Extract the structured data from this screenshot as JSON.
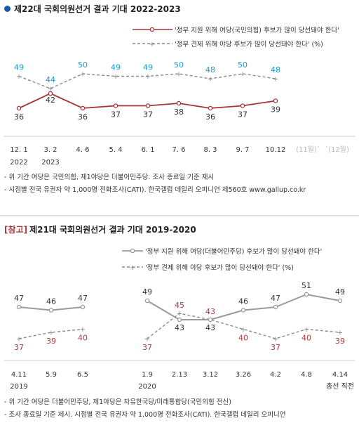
{
  "section1": {
    "title": "제22대 국회의원선거 결과 기대 2022-2023",
    "notes": [
      "- 위 기간 여당은 국민의힘, 제1야당은 더불어민주당. 조사 종료일 기준 제시",
      "- 시점별 전국 유권자 약 1,000명 전화조사(CATI). 한국갤럽 데일리 오피니언 제560호 www.gallup.co.kr"
    ]
  },
  "section2": {
    "ref_label": "[참고]",
    "title": "제21대 국회의원선거 결과 기대 2019-2020",
    "notes": [
      "- 위 기간 여당은 더불어민주당, 제1야당은 자유한국당/미래통합당(국민의힘 전신)",
      "- 조사 종료일 기준 제시. 시점별 전국 유권자 약 1,000명 전화조사(CATI). 한국갤럽 데일리 오피니언"
    ]
  },
  "colors": {
    "red_series": "#a5343a",
    "blue_label": "#1e9ad6",
    "gray_dashed": "#8a8a8a",
    "gray_series": "#9a9a9a",
    "red_label": "#b0393b",
    "future_tick": "#bbbbbb"
  },
  "chart_data": [
    {
      "type": "line",
      "legend": [
        "'정부 지원 위해 여당(국민의힘) 후보가 많이 당선돼야 한다'",
        "'정부 견제 위해 야당 후보가 많이 당선돼야 한다' (%)"
      ],
      "x_labels": [
        "12. 1",
        "3. 2",
        "4. 6",
        "5. 4",
        "6. 1",
        "7. 6",
        "8. 3",
        "9. 7",
        "10.12",
        "(11월)",
        "(12월)"
      ],
      "year_labels": [
        {
          "label": "2022",
          "at": "12. 1"
        },
        {
          "label": "2023",
          "at": "3. 2"
        }
      ],
      "series": [
        {
          "values": [
            36,
            42,
            36,
            37,
            37,
            38,
            36,
            37,
            39
          ]
        },
        {
          "values": [
            49,
            44,
            50,
            49,
            49,
            50,
            48,
            50,
            48
          ]
        }
      ]
    },
    {
      "type": "line",
      "legend": [
        "'정부 지원 위해 여당(더불어민주당) 후보가 많이 당선돼야 한다'",
        "'정부 견제 위해 야당 후보가 많이 당선돼야 한다' (%)"
      ],
      "x_labels": [
        "4.11",
        "5.9",
        "6.5",
        "1.9",
        "2.13",
        "3.12",
        "3.26",
        "4.2",
        "4.8",
        "4.14"
      ],
      "year_labels": [
        {
          "label": "2019",
          "at": "4.11"
        },
        {
          "label": "2020",
          "at": "1.9"
        }
      ],
      "extra_label": {
        "label": "총선 직전",
        "at": "4.14"
      },
      "series": [
        {
          "values": [
            47,
            46,
            47,
            49,
            43,
            43,
            46,
            47,
            51,
            49
          ]
        },
        {
          "values": [
            37,
            39,
            40,
            37,
            45,
            43,
            40,
            37,
            40,
            39
          ]
        }
      ]
    }
  ]
}
